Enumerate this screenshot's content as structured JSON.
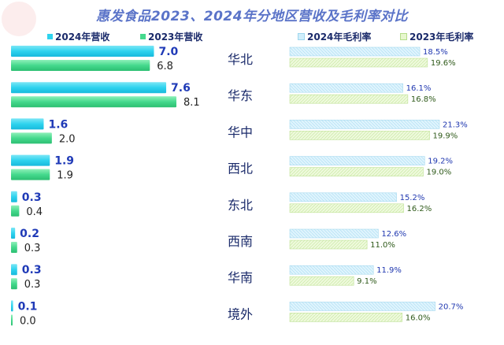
{
  "title": "惠发食品2023、2024年分地区营收及毛利率对比",
  "colors": {
    "rev2024": "#2ed3ee",
    "rev2023": "#45d98d",
    "margin2024": "#cfeefb",
    "margin2023": "#e7f7cd"
  },
  "legend": {
    "rev2024": "2024年营收",
    "rev2023": "2023年营收",
    "margin2024": "2024年毛利率",
    "margin2023": "2023年毛利率"
  },
  "chart_data": [
    {
      "type": "bar",
      "orientation": "horizontal",
      "categories": [
        "华北",
        "华东",
        "华中",
        "西北",
        "东北",
        "西南",
        "华南",
        "境外"
      ],
      "series": [
        {
          "name": "2024年营收",
          "values": [
            "7.0",
            "7.6",
            "1.6",
            "1.9",
            "0.3",
            "0.2",
            "0.3",
            "0.1"
          ]
        },
        {
          "name": "2023年营收",
          "values": [
            "6.8",
            "8.1",
            "2.0",
            "1.9",
            "0.4",
            "0.3",
            "0.3",
            "0.0"
          ]
        }
      ]
    },
    {
      "type": "bar",
      "orientation": "horizontal",
      "categories": [
        "华北",
        "华东",
        "华中",
        "西北",
        "东北",
        "西南",
        "华南",
        "境外"
      ],
      "series": [
        {
          "name": "2024年毛利率",
          "values": [
            "18.5%",
            "16.1%",
            "21.3%",
            "19.2%",
            "15.2%",
            "12.6%",
            "11.9%",
            "20.7%"
          ]
        },
        {
          "name": "2023年毛利率",
          "values": [
            "19.6%",
            "16.8%",
            "19.9%",
            "19.0%",
            "16.2%",
            "11.0%",
            "9.1%",
            "16.0%"
          ]
        }
      ]
    }
  ]
}
